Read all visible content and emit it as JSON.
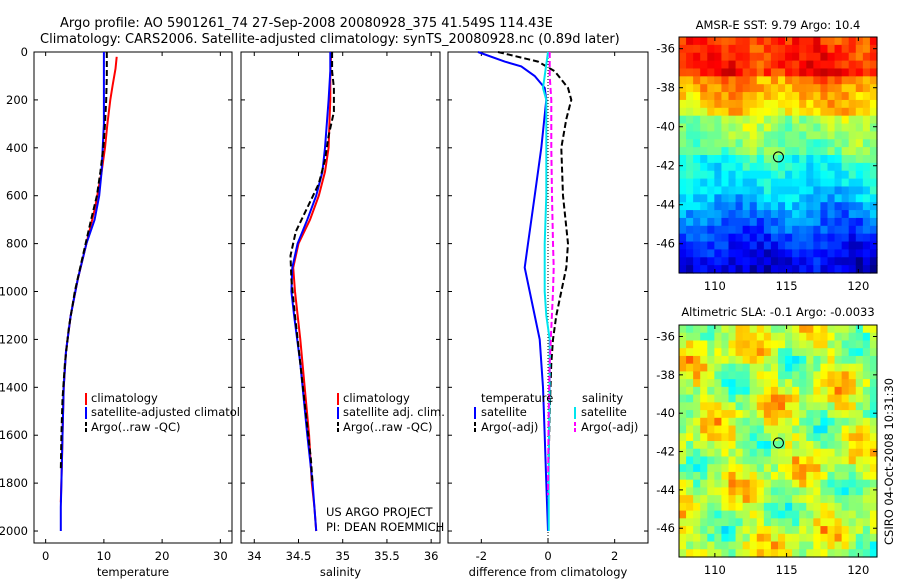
{
  "title_line1": "Argo profile: AO 5901261_74 27-Sep-2008 20080928_375 41.549S 114.43E",
  "title_line2": "Climatology: CARS2006. Satellite-adjusted climatology: synTS_20080928.nc (0.89d later)",
  "stamp": "CSIRO 04-Oct-2008 10:31:30",
  "project_line1": "US ARGO PROJECT",
  "project_line2": "PI: DEAN ROEMMICH",
  "colors": {
    "red": "#ff0000",
    "blue": "#0000ff",
    "black": "#000000",
    "cyan": "#00e5ee",
    "magenta": "#ff00ff"
  },
  "chart_data": [
    {
      "type": "line",
      "name": "temperature-profile",
      "xlabel": "temperature",
      "xlim": [
        -2,
        32
      ],
      "xticks": [
        0,
        10,
        20,
        30
      ],
      "ylim": [
        2050,
        0
      ],
      "yticks": [
        0,
        200,
        400,
        600,
        800,
        1000,
        1200,
        1400,
        1600,
        1800,
        2000
      ],
      "legend": [
        "climatology",
        "satellite-adjusted climatology",
        "Argo(..raw -QC)"
      ],
      "series": [
        {
          "name": "climatology",
          "color": "red",
          "dash": false,
          "x": [
            12.2,
            12,
            11.5,
            11.1,
            10.6,
            10.2,
            9.6,
            8.5,
            7,
            5.5,
            4.3,
            3.5,
            3.1,
            2.9,
            2.8,
            2.6
          ],
          "y": [
            20,
            70,
            140,
            200,
            300,
            400,
            500,
            650,
            800,
            950,
            1100,
            1250,
            1400,
            1600,
            1700,
            1880
          ]
        },
        {
          "name": "satellite-adjusted climatology",
          "color": "blue",
          "dash": false,
          "x": [
            10,
            10,
            10,
            10,
            9.8,
            9.6,
            9.2,
            8.4,
            7,
            5.5,
            4.3,
            3.5,
            3.1,
            2.9,
            2.7,
            2.6,
            2.6
          ],
          "y": [
            0,
            100,
            200,
            300,
            400,
            500,
            600,
            700,
            800,
            950,
            1100,
            1250,
            1400,
            1600,
            1800,
            1900,
            2000
          ]
        },
        {
          "name": "Argo(..raw -QC)",
          "color": "black",
          "dash": true,
          "x": [
            10.5,
            10.5,
            10.4,
            10.2,
            9.9,
            9.4,
            8.8,
            7.8,
            6.4,
            5,
            4,
            3.3,
            2.9,
            2.7,
            2.6
          ],
          "y": [
            0,
            100,
            200,
            300,
            400,
            500,
            600,
            700,
            850,
            1000,
            1150,
            1300,
            1450,
            1600,
            1750
          ]
        }
      ]
    },
    {
      "type": "line",
      "name": "salinity-profile",
      "xlabel": "salinity",
      "xlim": [
        33.85,
        36.1
      ],
      "xticks": [
        34,
        34.5,
        35,
        35.5,
        36
      ],
      "ylim": [
        2050,
        0
      ],
      "legend": [
        "climatology",
        "satellite adj. clim.",
        "Argo(..raw -QC)"
      ],
      "series": [
        {
          "name": "climatology",
          "color": "red",
          "dash": false,
          "x": [
            34.87,
            34.86,
            34.86,
            34.85,
            34.84,
            34.8,
            34.73,
            34.63,
            34.5,
            34.44,
            34.46,
            34.52,
            34.57,
            34.62,
            34.65,
            34.68,
            34.7
          ],
          "y": [
            0,
            100,
            200,
            300,
            400,
            500,
            600,
            700,
            800,
            900,
            1000,
            1200,
            1400,
            1600,
            1800,
            1900,
            2000
          ]
        },
        {
          "name": "satellite adj. clim.",
          "color": "blue",
          "dash": false,
          "x": [
            34.86,
            34.86,
            34.84,
            34.82,
            34.8,
            34.77,
            34.7,
            34.6,
            34.49,
            34.43,
            34.42,
            34.45,
            34.52,
            34.6,
            34.66,
            34.7
          ],
          "y": [
            0,
            80,
            200,
            300,
            400,
            500,
            600,
            700,
            800,
            900,
            1000,
            1100,
            1300,
            1600,
            1800,
            2000
          ]
        },
        {
          "name": "Argo(..raw -QC)",
          "color": "black",
          "dash": true,
          "x": [
            34.88,
            34.88,
            34.9,
            34.9,
            34.84,
            34.8,
            34.73,
            34.6,
            34.47,
            34.41,
            34.42,
            34.46,
            34.52,
            34.58,
            34.64,
            34.66
          ],
          "y": [
            0,
            80,
            150,
            250,
            350,
            450,
            550,
            650,
            750,
            850,
            950,
            1100,
            1300,
            1500,
            1700,
            1800
          ]
        }
      ]
    },
    {
      "type": "line",
      "name": "difference-profile",
      "xlabel": "difference from climatology",
      "xlim": [
        -3,
        3
      ],
      "xticks": [
        -2,
        0,
        2
      ],
      "ylim": [
        2050,
        0
      ],
      "legend_headers": [
        "temperature",
        "salinity"
      ],
      "legend": [
        "satellite",
        "Argo(-adj)",
        "satellite",
        "Argo(-adj)"
      ],
      "series": [
        {
          "name": "temperature satellite",
          "color": "blue",
          "dash": false,
          "x": [
            -2.1,
            -1.3,
            -0.8,
            -0.4,
            -0.1,
            -0.05,
            -0.2,
            -0.4,
            -0.6,
            -0.7,
            -0.55,
            -0.4,
            -0.25,
            -0.15,
            -0.1,
            -0.05,
            0
          ],
          "y": [
            0,
            40,
            60,
            100,
            150,
            200,
            400,
            600,
            800,
            900,
            1000,
            1100,
            1200,
            1400,
            1600,
            1800,
            2000
          ]
        },
        {
          "name": "temperature Argo(-adj)",
          "color": "black",
          "dash": true,
          "x": [
            -1.5,
            -0.3,
            0.2,
            0.6,
            0.7,
            0.55,
            0.4,
            0.45,
            0.6,
            0.55,
            0.4,
            0.25,
            0.15,
            0.1,
            0.05,
            0.02
          ],
          "y": [
            0,
            40,
            80,
            150,
            200,
            280,
            400,
            600,
            800,
            900,
            1000,
            1100,
            1200,
            1300,
            1500,
            1700
          ]
        },
        {
          "name": "salinity satellite",
          "color": "cyan",
          "dash": false,
          "x": [
            0,
            -0.1,
            -0.15,
            -0.05,
            -0.05,
            -0.05,
            -0.1,
            -0.1,
            -0.05,
            0.05,
            0.05,
            0.03,
            0.02,
            0.02
          ],
          "y": [
            0,
            100,
            150,
            200,
            400,
            600,
            800,
            1000,
            1100,
            1200,
            1400,
            1600,
            1800,
            2000
          ]
        },
        {
          "name": "salinity Argo(-adj)",
          "color": "magenta",
          "dash": true,
          "x": [
            0.05,
            0.05,
            0.1,
            0.1,
            0.12,
            0.15,
            0.17,
            0.15,
            0.05,
            0.02,
            0.01,
            0
          ],
          "y": [
            0,
            100,
            200,
            400,
            600,
            800,
            900,
            1000,
            1300,
            1500,
            1700,
            1850
          ]
        }
      ]
    },
    {
      "type": "heatmap",
      "name": "sst-map",
      "title": "AMSR-E SST: 9.79 Argo: 10.4",
      "xlim": [
        107.5,
        121.3
      ],
      "ylim": [
        -47.5,
        -35.4
      ],
      "xticks": [
        110,
        115,
        120
      ],
      "yticks": [
        -36,
        -38,
        -40,
        -42,
        -44,
        -46
      ],
      "marker": [
        114.43,
        -41.549
      ],
      "colormap": "jet"
    },
    {
      "type": "heatmap",
      "name": "sla-map",
      "title": "Altimetric SLA: -0.1 Argo: -0.0033",
      "xlim": [
        107.5,
        121.3
      ],
      "ylim": [
        -47.5,
        -35.4
      ],
      "xticks": [
        110,
        115,
        120
      ],
      "yticks": [
        -36,
        -38,
        -40,
        -42,
        -44,
        -46
      ],
      "marker": [
        114.43,
        -41.549
      ],
      "colormap": "jet"
    }
  ]
}
